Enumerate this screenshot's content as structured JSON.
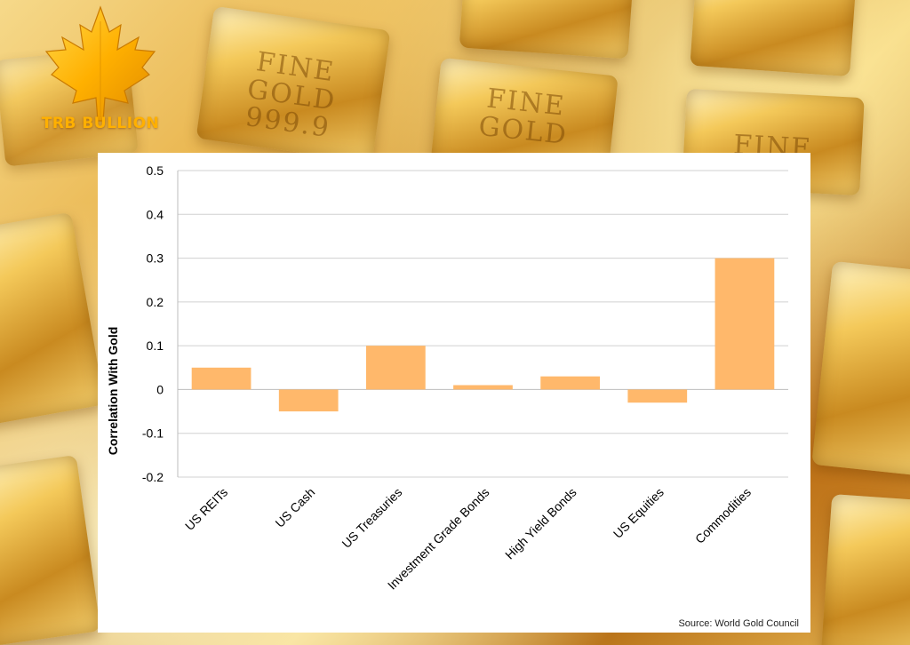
{
  "brand": {
    "name": "TRB BULLION",
    "logo_icon": "maple-leaf-icon",
    "accent_color": "#ffb000"
  },
  "background": {
    "bar_stamps": [
      "FINE GOLD 999.9",
      "FINE GOLD",
      "FINE GOLD",
      "FINE"
    ]
  },
  "chart_data": {
    "type": "bar",
    "title": "",
    "xlabel": "",
    "ylabel": "Correlation With Gold",
    "categories": [
      "US REITs",
      "US Cash",
      "US Treasuries",
      "Investment Grade Bonds",
      "High Yield Bonds",
      "US Equities",
      "Commodities"
    ],
    "values": [
      0.05,
      -0.05,
      0.1,
      0.01,
      0.03,
      -0.03,
      0.3
    ],
    "ylim": [
      -0.2,
      0.5
    ],
    "yticks": [
      0.5,
      0.4,
      0.3,
      0.2,
      0.1,
      0,
      -0.1,
      -0.2
    ],
    "ytick_labels": [
      "0.5",
      "0.4",
      "0.3",
      "0.2",
      "0.1",
      "0",
      "-0.1",
      "-0.2"
    ],
    "bar_color": "#ffb86b",
    "grid": true,
    "legend": "none"
  },
  "source_note": "Source: World Gold Council"
}
